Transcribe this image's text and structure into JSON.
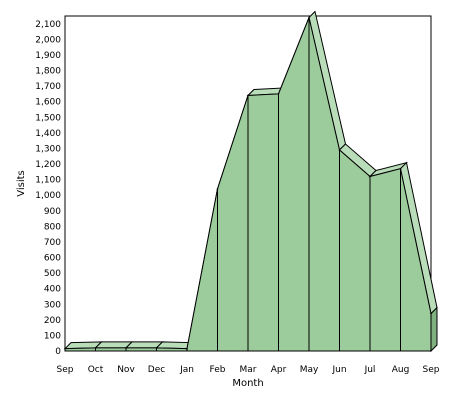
{
  "chart_data": {
    "type": "area",
    "title": "",
    "xlabel": "Month",
    "ylabel": "Visits",
    "categories": [
      "Sep",
      "Oct",
      "Nov",
      "Dec",
      "Jan",
      "Feb",
      "Mar",
      "Apr",
      "May",
      "Jun",
      "Jul",
      "Aug",
      "Sep"
    ],
    "series": [
      {
        "values": [
          15,
          20,
          20,
          20,
          15,
          1040,
          1640,
          1650,
          2140,
          1290,
          1120,
          1170,
          240
        ]
      }
    ],
    "yticks": [
      0,
      100,
      200,
      300,
      400,
      500,
      600,
      700,
      800,
      900,
      1000,
      1100,
      1200,
      1300,
      1400,
      1500,
      1600,
      1700,
      1800,
      1900,
      2000,
      2100
    ],
    "ytick_labels": [
      "0",
      "100",
      "200",
      "300",
      "400",
      "500",
      "600",
      "700",
      "800",
      "900",
      "1,000",
      "1,100",
      "1,200",
      "1,300",
      "1,400",
      "1,500",
      "1,600",
      "1,700",
      "1,800",
      "1,900",
      "2,000",
      "2,100"
    ],
    "ylim": [
      0,
      2150
    ],
    "grid": true,
    "legend": "none",
    "colors": {
      "fill": "#9ccc9c",
      "top_face": "#b9ddb9",
      "side_face": "#7fb07f",
      "stroke": "#000000",
      "grid": "#b8b8b8",
      "frame": "#000000"
    }
  }
}
